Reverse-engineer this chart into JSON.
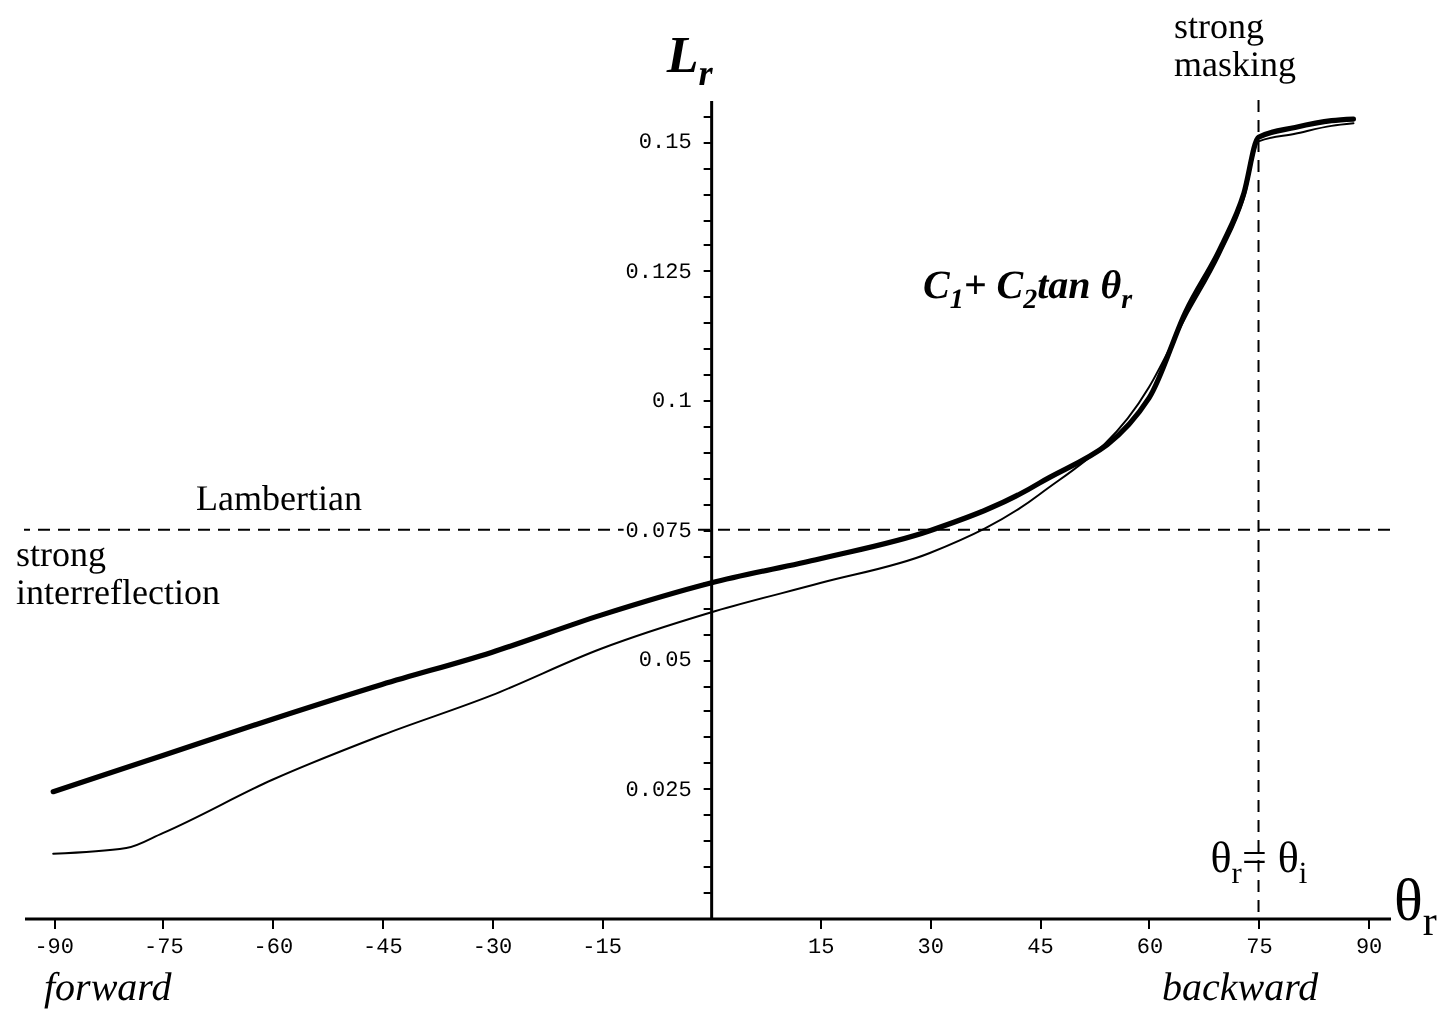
{
  "chart_data": {
    "type": "line",
    "xlabel": "θ$_{r}$",
    "ylabel": "L$_{r}$",
    "xlim": [
      -94,
      93
    ],
    "ylim": [
      0,
      0.158
    ],
    "xticks": [
      -90,
      -75,
      -60,
      -45,
      -30,
      -15,
      15,
      30,
      45,
      60,
      75,
      90
    ],
    "yticks": [
      {
        "value": 0.005,
        "label": null
      },
      {
        "value": 0.01,
        "label": null
      },
      {
        "value": 0.015,
        "label": null
      },
      {
        "value": 0.02,
        "label": null
      },
      {
        "value": 0.025,
        "label": "0.025"
      },
      {
        "value": 0.03,
        "label": null
      },
      {
        "value": 0.035,
        "label": null
      },
      {
        "value": 0.04,
        "label": null
      },
      {
        "value": 0.045,
        "label": null
      },
      {
        "value": 0.05,
        "label": "0.05"
      },
      {
        "value": 0.055,
        "label": null
      },
      {
        "value": 0.06,
        "label": null
      },
      {
        "value": 0.065,
        "label": null
      },
      {
        "value": 0.07,
        "label": null
      },
      {
        "value": 0.075,
        "label": "0.075"
      },
      {
        "value": 0.08,
        "label": null
      },
      {
        "value": 0.085,
        "label": null
      },
      {
        "value": 0.09,
        "label": null
      },
      {
        "value": 0.095,
        "label": null
      },
      {
        "value": 0.1,
        "label": "0.1"
      },
      {
        "value": 0.105,
        "label": null
      },
      {
        "value": 0.11,
        "label": null
      },
      {
        "value": 0.115,
        "label": null
      },
      {
        "value": 0.12,
        "label": null
      },
      {
        "value": 0.125,
        "label": "0.125"
      },
      {
        "value": 0.13,
        "label": null
      },
      {
        "value": 0.135,
        "label": null
      },
      {
        "value": 0.14,
        "label": null
      },
      {
        "value": 0.145,
        "label": null
      },
      {
        "value": 0.15,
        "label": "0.15"
      },
      {
        "value": 0.155,
        "label": null
      }
    ],
    "series": [
      {
        "name": "C$_{1}$+ C$_{2}$tan θ$_{r}$",
        "color": "#000000",
        "x": [
          -90,
          -75,
          -60,
          -45,
          -30,
          -15,
          0,
          15,
          30,
          45,
          60,
          65,
          70,
          73,
          75,
          80,
          85,
          88
        ],
        "values": [
          0.0244,
          0.0314,
          0.0384,
          0.0451,
          0.0513,
          0.0585,
          0.0647,
          0.0694,
          0.0748,
          0.084,
          0.1004,
          0.117,
          0.13,
          0.14,
          0.1508,
          0.1527,
          0.154,
          0.1543
        ]
      },
      {
        "color": "#000000",
        "x": [
          -90,
          -80,
          -75,
          -60,
          -45,
          -30,
          -15,
          0,
          15,
          30,
          45,
          60,
          65,
          70,
          73,
          75,
          80,
          85,
          88
        ],
        "values": [
          0.0124,
          0.0135,
          0.0164,
          0.0267,
          0.0353,
          0.043,
          0.052,
          0.059,
          0.0647,
          0.0705,
          0.0818,
          0.1025,
          0.116,
          0.129,
          0.139,
          0.15,
          0.1515,
          0.153,
          0.1535
        ]
      }
    ],
    "ref_lines": [
      {
        "axis": "y",
        "value": 0.075,
        "label": "Lambertian",
        "line_style": "dashed"
      },
      {
        "axis": "x",
        "value": 75,
        "label": "θ$_{r}$= θ$_{i}$",
        "line_style": "dashed"
      }
    ],
    "annotations": [
      "strong interreflection",
      "strong masking",
      "forward",
      "backward"
    ],
    "grid": false,
    "marker": "none",
    "line_style": "solid"
  }
}
